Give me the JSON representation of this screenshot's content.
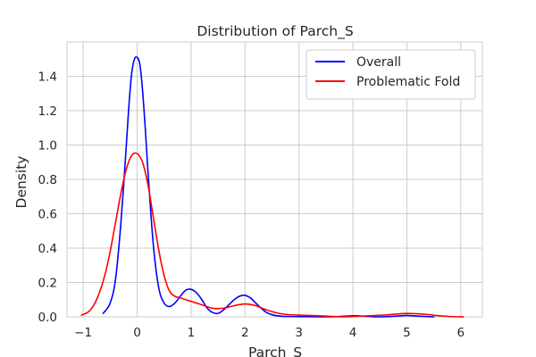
{
  "chart_data": {
    "type": "line",
    "title": "Distribution of Parch_S",
    "xlabel": "Parch_S",
    "ylabel": "Density",
    "xlim": [
      -1.3,
      6.4
    ],
    "ylim": [
      0,
      1.6
    ],
    "x_ticks": [
      -1,
      0,
      1,
      2,
      3,
      4,
      5,
      6
    ],
    "x_tick_labels": [
      "−1",
      "0",
      "1",
      "2",
      "3",
      "4",
      "5",
      "6"
    ],
    "y_ticks": [
      0,
      0.2,
      0.4,
      0.6,
      0.8,
      1.0,
      1.2,
      1.4
    ],
    "y_tick_labels": [
      "0.0",
      "0.2",
      "0.4",
      "0.6",
      "0.8",
      "1.0",
      "1.2",
      "1.4"
    ],
    "grid": true,
    "legend_position": "top-right",
    "series": [
      {
        "name": "Overall",
        "color": "#0000ff",
        "x": [
          -0.63,
          -0.5,
          -0.4,
          -0.3,
          -0.2,
          -0.15,
          -0.1,
          -0.05,
          0,
          0.05,
          0.1,
          0.15,
          0.2,
          0.3,
          0.4,
          0.5,
          0.6,
          0.7,
          0.8,
          0.9,
          1.0,
          1.1,
          1.2,
          1.3,
          1.4,
          1.5,
          1.6,
          1.7,
          1.8,
          1.9,
          2.0,
          2.1,
          2.2,
          2.3,
          2.4,
          2.5,
          2.6,
          2.7,
          2.8,
          3.0,
          3.2,
          3.5,
          3.8,
          4.0,
          4.2,
          4.5,
          4.8,
          5.0,
          5.2,
          5.5
        ],
        "y": [
          0.02,
          0.08,
          0.22,
          0.55,
          1.0,
          1.24,
          1.42,
          1.5,
          1.51,
          1.47,
          1.32,
          1.1,
          0.85,
          0.42,
          0.17,
          0.08,
          0.06,
          0.08,
          0.12,
          0.155,
          0.16,
          0.14,
          0.1,
          0.05,
          0.025,
          0.02,
          0.04,
          0.07,
          0.1,
          0.12,
          0.125,
          0.11,
          0.08,
          0.05,
          0.025,
          0.012,
          0.006,
          0.003,
          0.002,
          0.001,
          0.001,
          0.0,
          0.003,
          0.006,
          0.004,
          0.0,
          0.004,
          0.008,
          0.004,
          0.0
        ]
      },
      {
        "name": "Problematic Fold",
        "color": "#ff0000",
        "x": [
          -1.03,
          -0.9,
          -0.8,
          -0.7,
          -0.6,
          -0.5,
          -0.4,
          -0.3,
          -0.2,
          -0.1,
          0,
          0.1,
          0.2,
          0.3,
          0.4,
          0.5,
          0.6,
          0.7,
          0.8,
          0.9,
          1.0,
          1.2,
          1.4,
          1.6,
          1.8,
          2.0,
          2.2,
          2.4,
          2.6,
          2.8,
          3.0,
          3.2,
          3.5,
          3.8,
          4.0,
          4.3,
          4.6,
          4.8,
          5.0,
          5.2,
          5.4,
          5.6,
          5.8,
          6.05
        ],
        "y": [
          0.01,
          0.03,
          0.07,
          0.14,
          0.24,
          0.38,
          0.55,
          0.72,
          0.86,
          0.94,
          0.95,
          0.9,
          0.77,
          0.58,
          0.39,
          0.24,
          0.15,
          0.12,
          0.11,
          0.1,
          0.09,
          0.07,
          0.05,
          0.05,
          0.065,
          0.075,
          0.065,
          0.04,
          0.022,
          0.013,
          0.01,
          0.008,
          0.004,
          0.0,
          0.002,
          0.006,
          0.011,
          0.016,
          0.02,
          0.018,
          0.013,
          0.006,
          0.002,
          0.0
        ]
      }
    ]
  }
}
